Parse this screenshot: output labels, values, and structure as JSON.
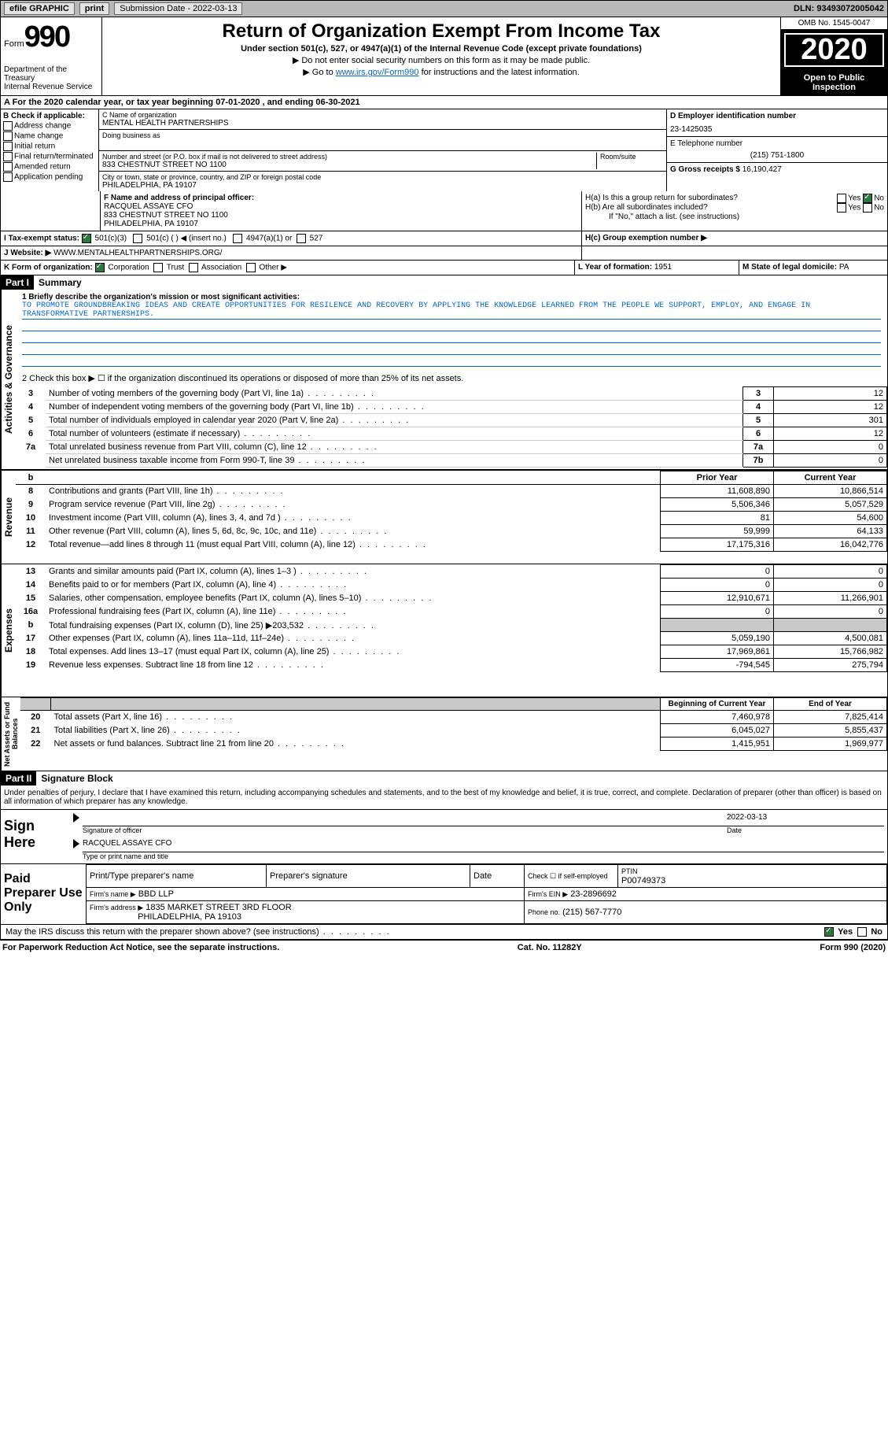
{
  "topbar": {
    "efile": "efile GRAPHIC",
    "print": "print",
    "sub_label": "Submission Date - 2022-03-13",
    "dln": "DLN: 93493072005042"
  },
  "header": {
    "form_label": "Form",
    "form_num": "990",
    "dept": "Department of the Treasury\nInternal Revenue Service",
    "title": "Return of Organization Exempt From Income Tax",
    "subtitle": "Under section 501(c), 527, or 4947(a)(1) of the Internal Revenue Code (except private foundations)",
    "inst1": "▶ Do not enter social security numbers on this form as it may be made public.",
    "inst2_pre": "▶ Go to ",
    "inst2_link": "www.irs.gov/Form990",
    "inst2_post": " for instructions and the latest information.",
    "omb": "OMB No. 1545-0047",
    "year": "2020",
    "open": "Open to Public Inspection"
  },
  "period": {
    "text": "A For the 2020 calendar year, or tax year beginning 07-01-2020    , and ending 06-30-2021"
  },
  "box_b": {
    "title": "B Check if applicable:",
    "items": [
      "Address change",
      "Name change",
      "Initial return",
      "Final return/terminated",
      "Amended return",
      "Application pending"
    ]
  },
  "box_c": {
    "name_label": "C Name of organization",
    "name": "MENTAL HEALTH PARTNERSHIPS",
    "dba_label": "Doing business as",
    "addr_label": "Number and street (or P.O. box if mail is not delivered to street address)",
    "room_label": "Room/suite",
    "addr": "833 CHESTNUT STREET NO 1100",
    "city_label": "City or town, state or province, country, and ZIP or foreign postal code",
    "city": "PHILADELPHIA, PA  19107"
  },
  "box_d": {
    "label": "D Employer identification number",
    "value": "23-1425035"
  },
  "box_e": {
    "label": "E Telephone number",
    "value": "(215) 751-1800"
  },
  "box_g": {
    "label": "G Gross receipts $",
    "value": "16,190,427"
  },
  "box_f": {
    "label": "F Name and address of principal officer:",
    "line1": "RACQUEL ASSAYE CFO",
    "line2": "833 CHESTNUT STREET NO 1100",
    "line3": "PHILADELPHIA, PA  19107"
  },
  "box_h": {
    "a_label": "H(a)  Is this a group return for subordinates?",
    "b_label": "H(b)  Are all subordinates included?",
    "b_note": "If \"No,\" attach a list. (see instructions)",
    "c_label": "H(c)  Group exemption number ▶",
    "yes": "Yes",
    "no": "No"
  },
  "tax_status": {
    "label": "I    Tax-exempt status:",
    "opts": [
      "501(c)(3)",
      "501(c) (  ) ◀ (insert no.)",
      "4947(a)(1) or",
      "527"
    ]
  },
  "website": {
    "label": "J   Website: ▶",
    "value": "WWW.MENTALHEALTHPARTNERSHIPS.ORG/"
  },
  "box_k": {
    "label": "K Form of organization:",
    "opts": [
      "Corporation",
      "Trust",
      "Association",
      "Other ▶"
    ]
  },
  "box_l": {
    "label": "L Year of formation:",
    "value": "1951"
  },
  "box_m": {
    "label": "M State of legal domicile:",
    "value": "PA"
  },
  "part1": {
    "header": "Part I",
    "title": "Summary",
    "mission_label": "1   Briefly describe the organization's mission or most significant activities:",
    "mission": "TO PROMOTE GROUNDBREAKING IDEAS AND CREATE OPPORTUNITIES FOR RESILENCE AND RECOVERY BY APPLYING THE KNOWLEDGE LEARNED FROM THE PEOPLE WE SUPPORT, EMPLOY, AND ENGAGE IN TRANSFORMATIVE PARTNERSHIPS.",
    "line2": "2   Check this box ▶ ☐  if the organization discontinued its operations or disposed of more than 25% of its net assets."
  },
  "vlabels": {
    "gov": "Activities & Governance",
    "rev": "Revenue",
    "exp": "Expenses",
    "net": "Net Assets or Fund Balances"
  },
  "gov_rows": [
    {
      "n": "3",
      "label": "Number of voting members of the governing body (Part VI, line 1a)",
      "box": "3",
      "val": "12"
    },
    {
      "n": "4",
      "label": "Number of independent voting members of the governing body (Part VI, line 1b)",
      "box": "4",
      "val": "12"
    },
    {
      "n": "5",
      "label": "Total number of individuals employed in calendar year 2020 (Part V, line 2a)",
      "box": "5",
      "val": "301"
    },
    {
      "n": "6",
      "label": "Total number of volunteers (estimate if necessary)",
      "box": "6",
      "val": "12"
    },
    {
      "n": "7a",
      "label": "Total unrelated business revenue from Part VIII, column (C), line 12",
      "box": "7a",
      "val": "0"
    },
    {
      "n": "",
      "label": "Net unrelated business taxable income from Form 990-T, line 39",
      "box": "7b",
      "val": "0"
    }
  ],
  "col_headers": {
    "prior": "Prior Year",
    "current": "Current Year"
  },
  "rev_rows": [
    {
      "n": "8",
      "label": "Contributions and grants (Part VIII, line 1h)",
      "prior": "11,608,890",
      "curr": "10,866,514"
    },
    {
      "n": "9",
      "label": "Program service revenue (Part VIII, line 2g)",
      "prior": "5,506,346",
      "curr": "5,057,529"
    },
    {
      "n": "10",
      "label": "Investment income (Part VIII, column (A), lines 3, 4, and 7d )",
      "prior": "81",
      "curr": "54,600"
    },
    {
      "n": "11",
      "label": "Other revenue (Part VIII, column (A), lines 5, 6d, 8c, 9c, 10c, and 11e)",
      "prior": "59,999",
      "curr": "64,133"
    },
    {
      "n": "12",
      "label": "Total revenue—add lines 8 through 11 (must equal Part VIII, column (A), line 12)",
      "prior": "17,175,316",
      "curr": "16,042,776"
    }
  ],
  "exp_rows": [
    {
      "n": "13",
      "label": "Grants and similar amounts paid (Part IX, column (A), lines 1–3 )",
      "prior": "0",
      "curr": "0"
    },
    {
      "n": "14",
      "label": "Benefits paid to or for members (Part IX, column (A), line 4)",
      "prior": "0",
      "curr": "0"
    },
    {
      "n": "15",
      "label": "Salaries, other compensation, employee benefits (Part IX, column (A), lines 5–10)",
      "prior": "12,910,671",
      "curr": "11,266,901"
    },
    {
      "n": "16a",
      "label": "Professional fundraising fees (Part IX, column (A), line 11e)",
      "prior": "0",
      "curr": "0"
    },
    {
      "n": "b",
      "label": "Total fundraising expenses (Part IX, column (D), line 25) ▶203,532",
      "prior": "GREY",
      "curr": "GREY"
    },
    {
      "n": "17",
      "label": "Other expenses (Part IX, column (A), lines 11a–11d, 11f–24e)",
      "prior": "5,059,190",
      "curr": "4,500,081"
    },
    {
      "n": "18",
      "label": "Total expenses. Add lines 13–17 (must equal Part IX, column (A), line 25)",
      "prior": "17,969,861",
      "curr": "15,766,982"
    },
    {
      "n": "19",
      "label": "Revenue less expenses. Subtract line 18 from line 12",
      "prior": "-794,545",
      "curr": "275,794"
    }
  ],
  "net_headers": {
    "begin": "Beginning of Current Year",
    "end": "End of Year"
  },
  "net_rows": [
    {
      "n": "20",
      "label": "Total assets (Part X, line 16)",
      "prior": "7,460,978",
      "curr": "7,825,414"
    },
    {
      "n": "21",
      "label": "Total liabilities (Part X, line 26)",
      "prior": "6,045,027",
      "curr": "5,855,437"
    },
    {
      "n": "22",
      "label": "Net assets or fund balances. Subtract line 21 from line 20",
      "prior": "1,415,951",
      "curr": "1,969,977"
    }
  ],
  "part2": {
    "header": "Part II",
    "title": "Signature Block",
    "decl": "Under penalties of perjury, I declare that I have examined this return, including accompanying schedules and statements, and to the best of my knowledge and belief, it is true, correct, and complete. Declaration of preparer (other than officer) is based on all information of which preparer has any knowledge."
  },
  "sign": {
    "label": "Sign Here",
    "sig_label": "Signature of officer",
    "date_label": "Date",
    "date_val": "2022-03-13",
    "name": "RACQUEL ASSAYE CFO",
    "name_label": "Type or print name and title"
  },
  "preparer": {
    "label": "Paid Preparer Use Only",
    "col1": "Print/Type preparer's name",
    "col2": "Preparer's signature",
    "col3": "Date",
    "col4_label": "Check ☐ if self-employed",
    "ptin_label": "PTIN",
    "ptin": "P00749373",
    "firm_name_label": "Firm's name    ▶",
    "firm_name": "BBD LLP",
    "firm_ein_label": "Firm's EIN ▶",
    "firm_ein": "23-2896692",
    "firm_addr_label": "Firm's address ▶",
    "firm_addr1": "1835 MARKET STREET 3RD FLOOR",
    "firm_addr2": "PHILADELPHIA, PA  19103",
    "phone_label": "Phone no.",
    "phone": "(215) 567-7770"
  },
  "discuss": {
    "text": "May the IRS discuss this return with the preparer shown above? (see instructions)",
    "yes": "Yes",
    "no": "No"
  },
  "footer": {
    "left": "For Paperwork Reduction Act Notice, see the separate instructions.",
    "center": "Cat. No. 11282Y",
    "right": "Form 990 (2020)"
  }
}
